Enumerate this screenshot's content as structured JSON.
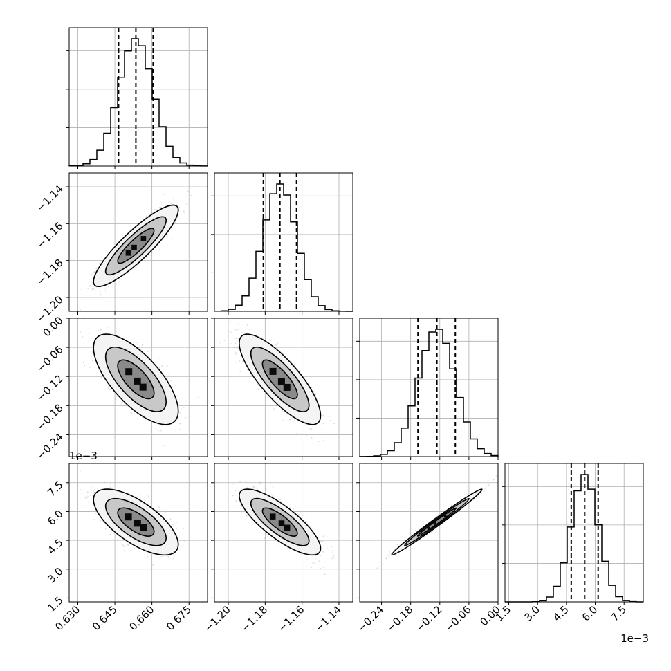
{
  "chart_data": {
    "type": "corner",
    "grid": true,
    "parameters": [
      {
        "axis_ticks": [
          "0.630",
          "0.645",
          "0.660",
          "0.675"
        ],
        "tick_values": [
          0.63,
          0.645,
          0.66,
          0.675
        ],
        "range": [
          0.6265,
          0.6825
        ],
        "offset_text": "",
        "median": 0.6535,
        "q16": 0.6465,
        "q84": 0.6605,
        "sigma": 0.007
      },
      {
        "axis_ticks": [
          "−1.20",
          "−1.18",
          "−1.16",
          "−1.14"
        ],
        "tick_values": [
          -1.2,
          -1.18,
          -1.16,
          -1.14
        ],
        "range": [
          -1.2075,
          -1.1325
        ],
        "offset_text": "",
        "median": -1.172,
        "q16": -1.181,
        "q84": -1.163,
        "sigma": 0.009
      },
      {
        "axis_ticks": [
          "−0.24",
          "−0.18",
          "−0.12",
          "−0.06",
          "0.00"
        ],
        "tick_values": [
          -0.24,
          -0.18,
          -0.12,
          -0.06,
          0.0
        ],
        "range": [
          -0.285,
          0.0
        ],
        "offset_text": "",
        "median": -0.126,
        "q16": -0.165,
        "q84": -0.088,
        "sigma": 0.038
      },
      {
        "axis_ticks": [
          "1.5",
          "3.0",
          "4.5",
          "6.0",
          "7.5"
        ],
        "tick_values": [
          1.5,
          3.0,
          4.5,
          6.0,
          7.5
        ],
        "range": [
          1.3,
          8.5
        ],
        "offset_text": "1e−3",
        "median": 5.45,
        "q16": 4.75,
        "q84": 6.15,
        "sigma": 0.7
      }
    ],
    "correlations": [
      [
        1.0,
        0.88,
        -0.7,
        -0.68
      ],
      [
        0.88,
        1.0,
        -0.8,
        -0.8
      ],
      [
        -0.7,
        -0.8,
        1.0,
        0.99
      ],
      [
        -0.68,
        -0.8,
        0.99,
        1.0
      ]
    ],
    "histogram_bins": 20,
    "colors": {
      "line": "#000000",
      "grid": "#b0b0b0",
      "point": "#808080",
      "frame": "#000000"
    }
  }
}
